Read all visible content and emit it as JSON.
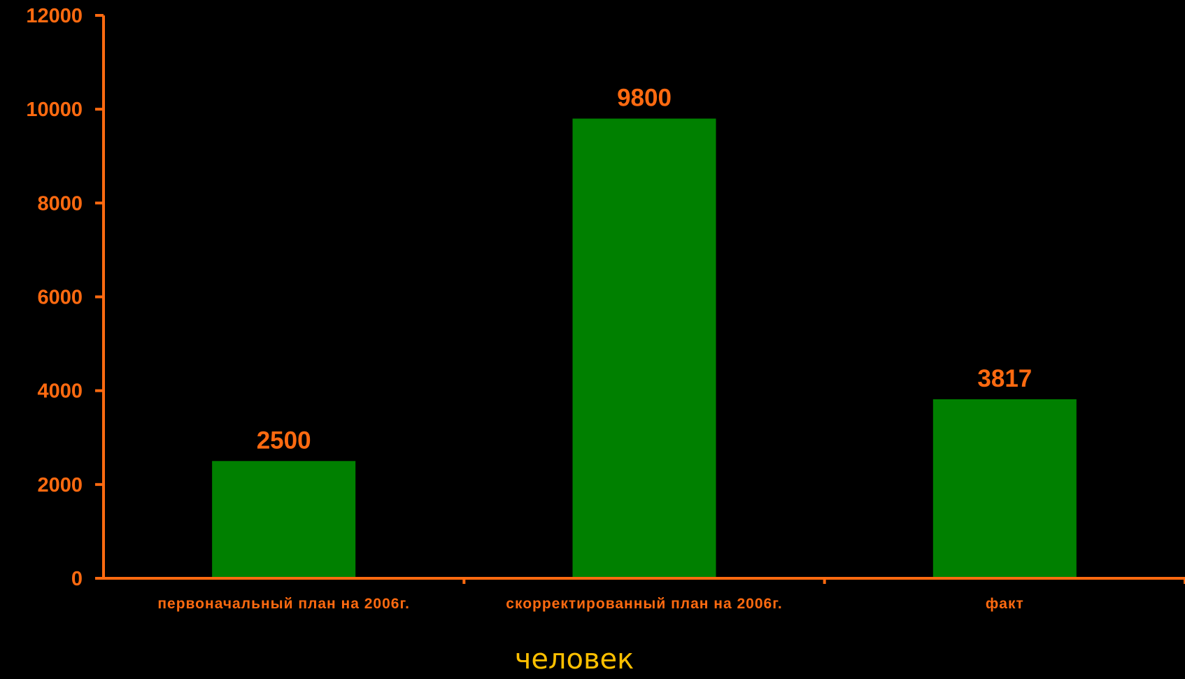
{
  "colors": {
    "background": "#000000",
    "axis": "#FF6A10",
    "bar": "#008000",
    "text": "#FF6A10",
    "xlabel": "#FFC000"
  },
  "chart_data": {
    "type": "bar",
    "categories": [
      "первоначальный план на 2006г.",
      "скорректированный план на 2006г.",
      "факт"
    ],
    "values": [
      2500,
      9800,
      3817
    ],
    "value_labels": [
      "2500",
      "9800",
      "3817"
    ],
    "title": "",
    "xlabel": "человек",
    "ylabel": "",
    "ylim": [
      0,
      12000
    ],
    "yticks": [
      "0",
      "2000",
      "4000",
      "6000",
      "8000",
      "10000",
      "12000"
    ],
    "grid": false,
    "legend": "none"
  }
}
